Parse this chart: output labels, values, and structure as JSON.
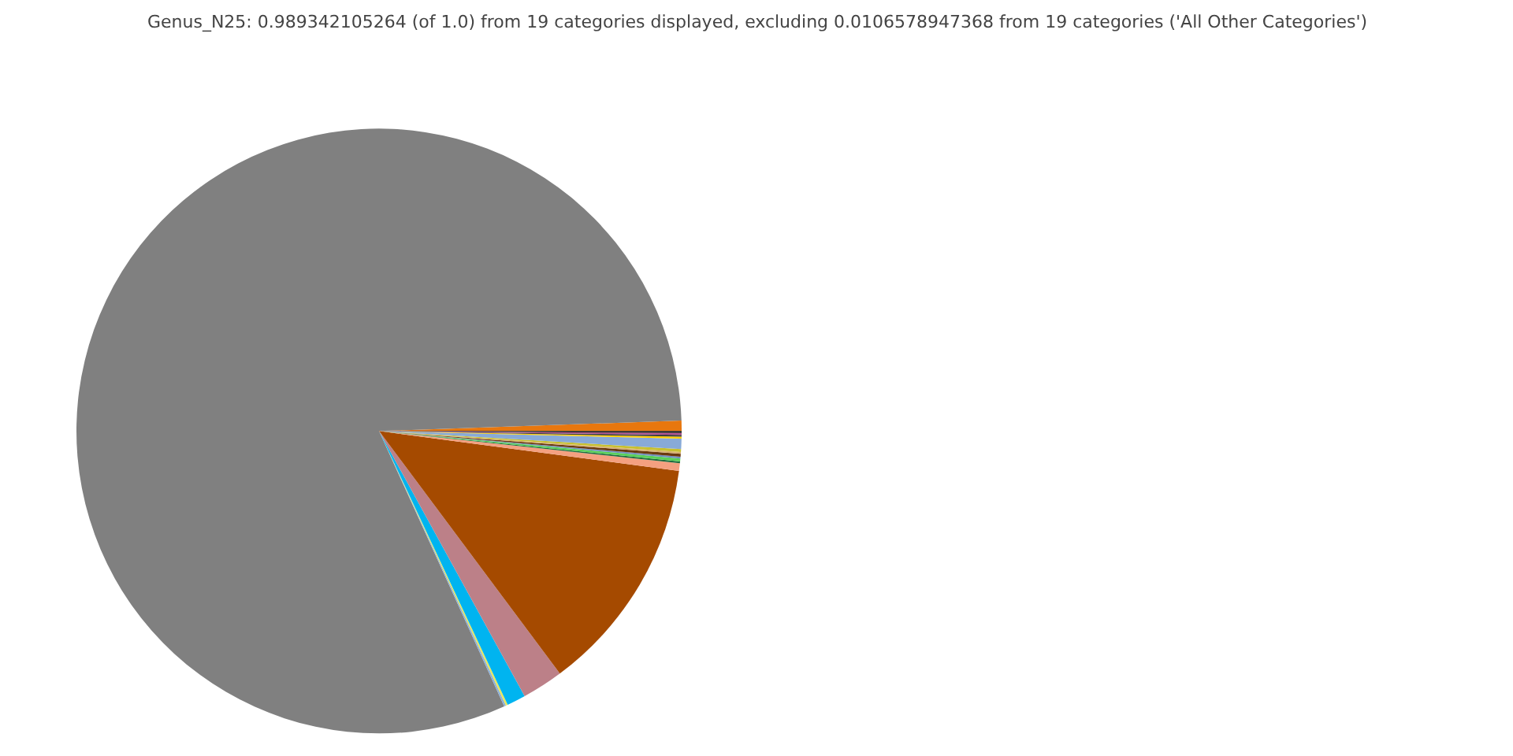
{
  "chart_data": {
    "type": "pie",
    "title": "Genus_N25: 0.989342105264 (of 1.0) from 19 categories displayed, excluding 0.0106578947368 from 19 categories ('All Other Categories')",
    "categories": [
      null,
      null,
      null,
      null,
      null,
      null,
      null,
      null,
      null,
      null,
      null,
      null,
      null,
      null,
      null,
      null,
      null,
      null,
      null
    ],
    "values": [
      0.55,
      81.2,
      0.1,
      0.1,
      1.0,
      2.2,
      12.7,
      0.4,
      0.1,
      0.15,
      0.1,
      0.15,
      0.1,
      0.15,
      0.55,
      0.1,
      0.1,
      0.1,
      0.1
    ],
    "colors": [
      "#e8770e",
      "#808080",
      "#8eb1d8",
      "#e8e85a",
      "#00b4f0",
      "#bc8088",
      "#a54a00",
      "#f4a080",
      "#1f6b3e",
      "#5ad05a",
      "#7090c0",
      "#6b3a10",
      "#d8b070",
      "#c8c030",
      "#88aad8",
      "#ffd000",
      "#404040",
      "#b05090",
      "#202020"
    ]
  }
}
